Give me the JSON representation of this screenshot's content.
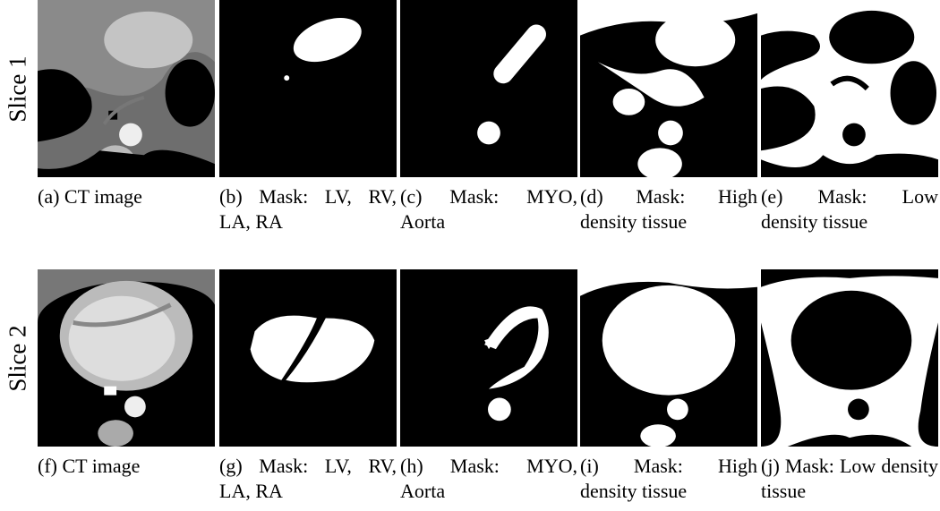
{
  "rows": [
    {
      "label": "Slice 1",
      "panels": [
        {
          "caption": "(a) CT image"
        },
        {
          "caption": "(b) Mask: LV, RV, LA, RA"
        },
        {
          "caption": "(c) Mask: MYO, Aorta"
        },
        {
          "caption": "(d) Mask: High density tissue"
        },
        {
          "caption": "(e) Mask: Low density tissue"
        }
      ]
    },
    {
      "label": "Slice 2",
      "panels": [
        {
          "caption": "(f) CT image"
        },
        {
          "caption": "(g) Mask: LV, RV, LA, RA"
        },
        {
          "caption": "(h) Mask: MYO, Aorta"
        },
        {
          "caption": "(i) Mask: High density tissue"
        },
        {
          "caption": "(j) Mask: Low density tissue"
        }
      ]
    }
  ]
}
